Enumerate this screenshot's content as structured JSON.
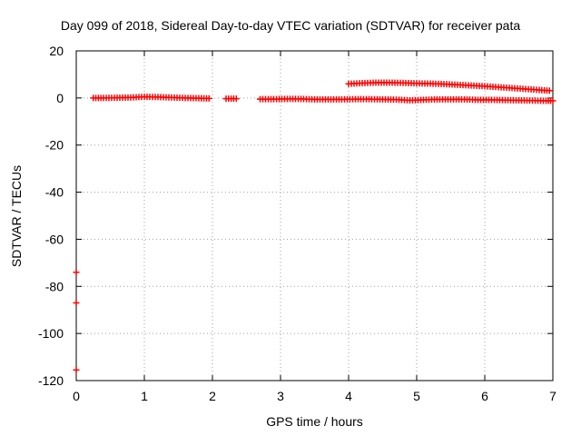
{
  "chart_data": {
    "type": "scatter",
    "title": "Day 099 of 2018, Sidereal Day-to-day VTEC variation (SDTVAR) for receiver pata",
    "xlabel": "GPS time / hours",
    "ylabel": "SDTVAR / TECUs",
    "xlim": [
      0,
      7
    ],
    "ylim": [
      -120,
      20
    ],
    "xticks": [
      "0",
      "1",
      "2",
      "3",
      "4",
      "5",
      "6",
      "7"
    ],
    "yticks": [
      "20",
      "0",
      "-20",
      "-40",
      "-60",
      "-80",
      "-100",
      "-120"
    ],
    "grid": true,
    "marker_color": "#ff0000",
    "series": [
      {
        "points": [
          [
            0.25,
            0.0
          ],
          [
            0.4,
            0.0
          ],
          [
            0.6,
            0.1
          ],
          [
            0.8,
            0.2
          ],
          [
            1.0,
            0.5
          ],
          [
            1.2,
            0.4
          ],
          [
            1.4,
            0.2
          ],
          [
            1.6,
            0.0
          ],
          [
            1.8,
            -0.1
          ],
          [
            1.95,
            -0.2
          ],
          [
            2.2,
            -0.3
          ],
          [
            2.35,
            -0.3
          ],
          [
            2.7,
            -0.5
          ],
          [
            2.9,
            -0.5
          ],
          [
            3.1,
            -0.4
          ],
          [
            3.3,
            -0.4
          ],
          [
            3.5,
            -0.6
          ],
          [
            3.7,
            -0.6
          ],
          [
            3.9,
            -0.6
          ],
          [
            4.1,
            -0.5
          ],
          [
            4.3,
            -0.5
          ],
          [
            4.5,
            -0.6
          ],
          [
            4.7,
            -0.7
          ],
          [
            4.9,
            -1.0
          ],
          [
            5.1,
            -0.8
          ],
          [
            5.3,
            -0.6
          ],
          [
            5.5,
            -0.6
          ],
          [
            5.7,
            -0.6
          ],
          [
            5.9,
            -0.8
          ],
          [
            6.1,
            -0.8
          ],
          [
            6.3,
            -0.9
          ],
          [
            6.5,
            -1.0
          ],
          [
            6.7,
            -1.1
          ],
          [
            6.9,
            -1.2
          ],
          [
            7.0,
            -1.2
          ],
          [
            4.0,
            6.0
          ],
          [
            4.2,
            6.3
          ],
          [
            4.4,
            6.5
          ],
          [
            4.6,
            6.5
          ],
          [
            4.8,
            6.4
          ],
          [
            5.0,
            6.2
          ],
          [
            5.2,
            6.1
          ],
          [
            5.4,
            5.9
          ],
          [
            5.6,
            5.6
          ],
          [
            5.8,
            5.3
          ],
          [
            6.0,
            5.0
          ],
          [
            6.2,
            4.6
          ],
          [
            6.4,
            4.2
          ],
          [
            6.6,
            3.8
          ],
          [
            6.8,
            3.4
          ],
          [
            6.95,
            3.1
          ],
          [
            0.0,
            -74
          ],
          [
            0.0,
            -87
          ],
          [
            0.0,
            -115.5
          ]
        ]
      }
    ]
  }
}
